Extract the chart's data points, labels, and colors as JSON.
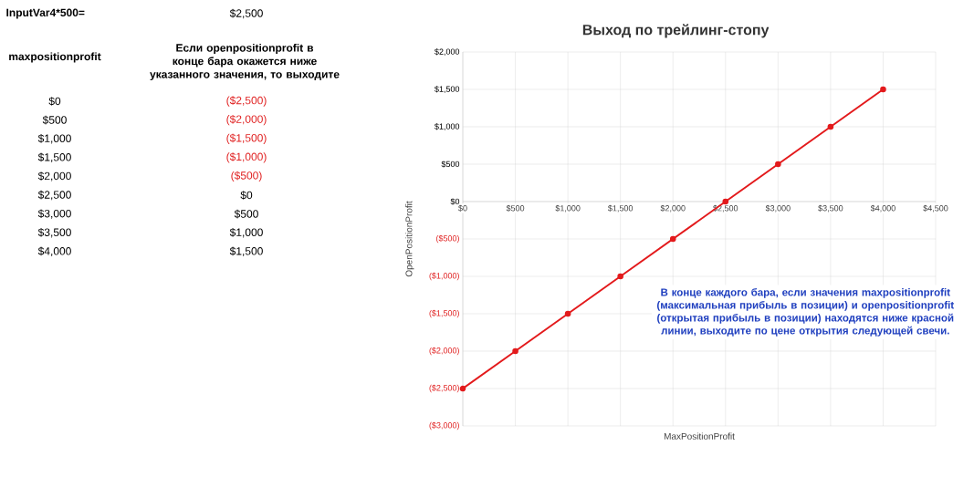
{
  "chart_data": {
    "type": "line",
    "title": "Выход по трейлинг-стопу",
    "xlabel": "MaxPositionProfit",
    "ylabel": "OpenPositionProfit",
    "x": [
      0,
      500,
      1000,
      1500,
      2000,
      2500,
      3000,
      3500,
      4000
    ],
    "series": [
      {
        "color": "#e31a1c",
        "values": [
          -2500,
          -2000,
          -1500,
          -1000,
          -500,
          0,
          500,
          1000,
          1500
        ]
      }
    ],
    "xlim": [
      0,
      4500
    ],
    "xticks": [
      {
        "value": 0,
        "label": "$0"
      },
      {
        "value": 500,
        "label": "$500"
      },
      {
        "value": 1000,
        "label": "$1,000"
      },
      {
        "value": 1500,
        "label": "$1,500"
      },
      {
        "value": 2000,
        "label": "$2,000"
      },
      {
        "value": 2500,
        "label": "$2,500"
      },
      {
        "value": 3000,
        "label": "$3,000"
      },
      {
        "value": 3500,
        "label": "$3,500"
      },
      {
        "value": 4000,
        "label": "$4,000"
      },
      {
        "value": 4500,
        "label": "$4,500"
      }
    ],
    "ylim": [
      -3000,
      2000
    ],
    "yticks": [
      {
        "value": -3000,
        "label": "($3,000)"
      },
      {
        "value": -2500,
        "label": "($2,500)"
      },
      {
        "value": -2000,
        "label": "($2,000)"
      },
      {
        "value": -1500,
        "label": "($1,500)"
      },
      {
        "value": -1000,
        "label": "($1,000)"
      },
      {
        "value": -500,
        "label": "($500)"
      },
      {
        "value": 0,
        "label": "$0"
      },
      {
        "value": 500,
        "label": "$500"
      },
      {
        "value": 1000,
        "label": "$1,000"
      },
      {
        "value": 1500,
        "label": "$1,500"
      },
      {
        "value": 2000,
        "label": "$2,000"
      }
    ],
    "grid": true,
    "marker": "circle",
    "line_style": "solid",
    "annotations": [
      "InputVar4*500=",
      "$2,500",
      "maxpositionprofit",
      "Если openpositionprofit в конце бара окажется ниже указанного значения, то выходите",
      "В конце каждого бара, если значения maxpositionprofit (максимальная прибыль в позиции) и openpositionprofit (открытая прибыль в позиции) находятся ниже красной линии, выходите по цене открытия следующей свечи.",
      "$0",
      "($2,500)",
      "$500",
      "($2,000)",
      "$1,000",
      "($1,500)",
      "$1,500",
      "($1,000)",
      "$2,000",
      "($500)",
      "$2,500",
      "$0",
      "$3,000",
      "$500",
      "$3,500",
      "$1,000",
      "$4,000",
      "$1,500"
    ]
  }
}
